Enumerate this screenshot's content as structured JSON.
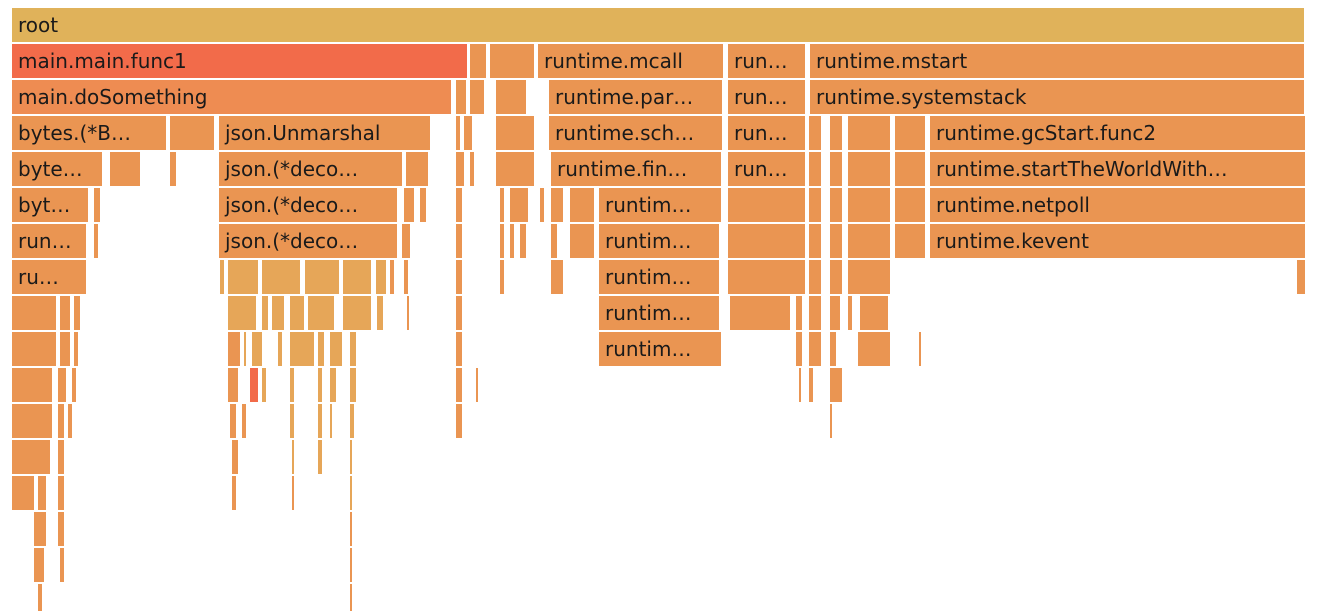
{
  "flamegraph": {
    "palette": {
      "root": "#e0b25a",
      "hot": "#f26b4a",
      "warm": "#ee8c52",
      "normal": "#ea9552",
      "light": "#e6a658"
    },
    "frames": [
      {
        "label": "root",
        "tone": "root"
      },
      {
        "label": "main.main.func1",
        "tone": "hot"
      },
      {
        "label": "main.doSomething",
        "tone": "warm"
      },
      {
        "label": "bytes.(*B…",
        "tone": "normal"
      },
      {
        "label": "json.Unmarshal",
        "tone": "normal"
      },
      {
        "label": "byte…",
        "tone": "normal"
      },
      {
        "label": "json.(*deco…",
        "tone": "normal"
      },
      {
        "label": "byt…",
        "tone": "normal"
      },
      {
        "label": "json.(*deco…",
        "tone": "normal"
      },
      {
        "label": "run…",
        "tone": "normal"
      },
      {
        "label": "json.(*deco…",
        "tone": "normal"
      },
      {
        "label": "ru…",
        "tone": "normal"
      },
      {
        "label": "runtime.mcall",
        "tone": "normal"
      },
      {
        "label": "runtime.par…",
        "tone": "normal"
      },
      {
        "label": "runtime.sch…",
        "tone": "normal"
      },
      {
        "label": "runtime.fin…",
        "tone": "normal"
      },
      {
        "label": "runtim…",
        "tone": "normal"
      },
      {
        "label": "runtim…",
        "tone": "normal"
      },
      {
        "label": "runtim…",
        "tone": "normal"
      },
      {
        "label": "runtim…",
        "tone": "normal"
      },
      {
        "label": "runtim…",
        "tone": "normal"
      },
      {
        "label": "run…",
        "tone": "normal"
      },
      {
        "label": "run…",
        "tone": "normal"
      },
      {
        "label": "run…",
        "tone": "normal"
      },
      {
        "label": "run…",
        "tone": "normal"
      },
      {
        "label": "runtime.mstart",
        "tone": "normal"
      },
      {
        "label": "runtime.systemstack",
        "tone": "normal"
      },
      {
        "label": "runtime.gcStart.func2",
        "tone": "normal"
      },
      {
        "label": "runtime.startTheWorldWith…",
        "tone": "normal"
      },
      {
        "label": "runtime.netpoll",
        "tone": "normal"
      },
      {
        "label": "runtime.kevent",
        "tone": "normal"
      }
    ]
  }
}
